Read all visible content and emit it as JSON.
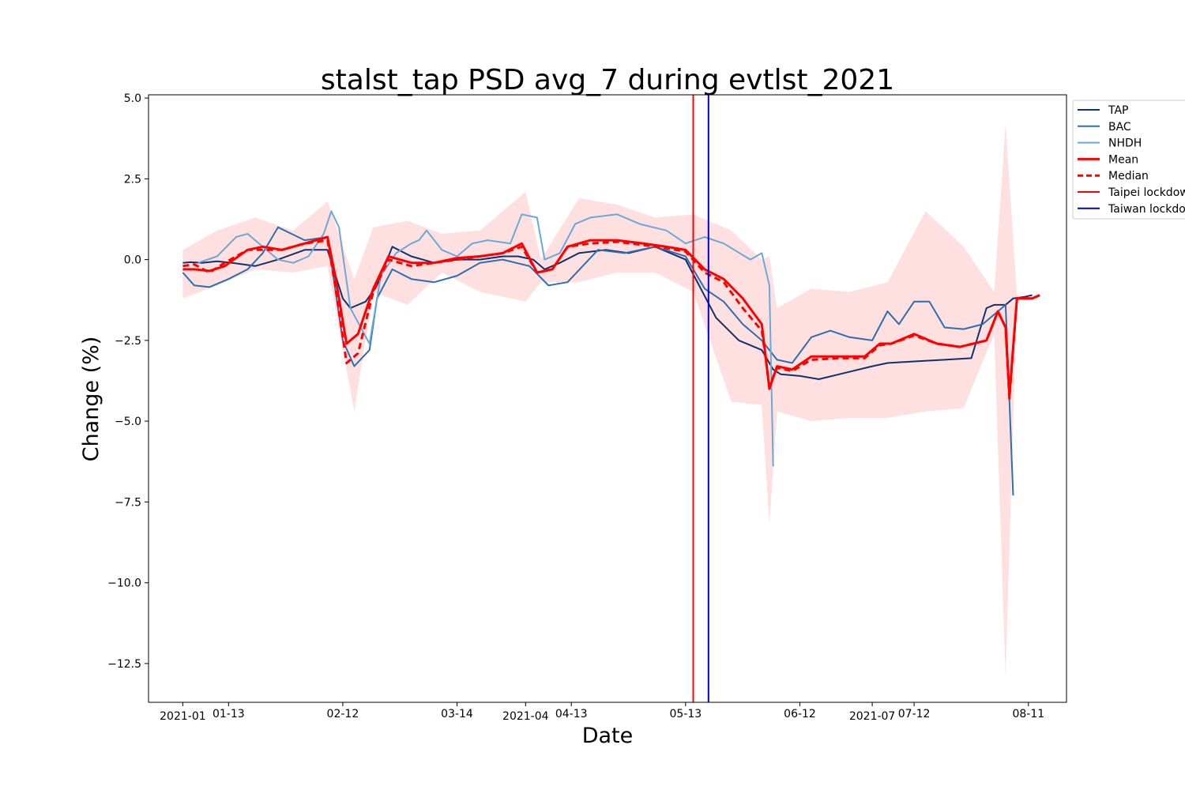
{
  "chart_data": {
    "type": "line",
    "title": "stalst_tap PSD avg_7 during evtlst_2021",
    "xlabel": "Date",
    "ylabel": "Change (%)",
    "ylim": [
      -13.7,
      5.1
    ],
    "xlim": [
      "2020-12-23",
      "2021-08-21"
    ],
    "y_ticks": [
      5.0,
      2.5,
      0.0,
      -2.5,
      -5.0,
      -7.5,
      -10.0,
      -12.5
    ],
    "y_tick_labels": [
      "5.0",
      "2.5",
      "0.0",
      "−2.5",
      "−5.0",
      "−7.5",
      "−10.0",
      "−12.5"
    ],
    "x_ticks": [
      {
        "date": "2021-01-01",
        "label": "2021-01",
        "row": 1
      },
      {
        "date": "2021-01-13",
        "label": "01-13",
        "row": 0
      },
      {
        "date": "2021-02-12",
        "label": "02-12",
        "row": 0
      },
      {
        "date": "2021-03-14",
        "label": "03-14",
        "row": 0
      },
      {
        "date": "2021-04-01",
        "label": "2021-04",
        "row": 1
      },
      {
        "date": "2021-04-13",
        "label": "04-13",
        "row": 0
      },
      {
        "date": "2021-05-13",
        "label": "05-13",
        "row": 0
      },
      {
        "date": "2021-06-12",
        "label": "06-12",
        "row": 0
      },
      {
        "date": "2021-07-01",
        "label": "2021-07",
        "row": 1
      },
      {
        "date": "2021-07-12",
        "label": "07-12",
        "row": 0
      },
      {
        "date": "2021-08-11",
        "label": "08-11",
        "row": 0
      }
    ],
    "legend_position": "upper right, outside plot",
    "grid": false,
    "vlines": [
      {
        "name": "Taipei lockdown",
        "date": "2021-05-15",
        "color": "#ff0000"
      },
      {
        "name": "Taiwan lockdown",
        "date": "2021-05-19",
        "color": "#0000cc"
      }
    ],
    "band": {
      "color": "#ffd6d6",
      "x": [
        "2021-01-01",
        "2021-01-10",
        "2021-01-20",
        "2021-01-30",
        "2021-02-08",
        "2021-02-15",
        "2021-02-20",
        "2021-03-01",
        "2021-03-10",
        "2021-03-20",
        "2021-04-01",
        "2021-04-05",
        "2021-04-15",
        "2021-04-25",
        "2021-05-05",
        "2021-05-15",
        "2021-05-25",
        "2021-06-02",
        "2021-06-04",
        "2021-06-06",
        "2021-06-15",
        "2021-06-25",
        "2021-07-05",
        "2021-07-15",
        "2021-07-25",
        "2021-08-02",
        "2021-08-05",
        "2021-08-08",
        "2021-08-10",
        "2021-08-14"
      ],
      "upper": [
        0.3,
        0.9,
        1.3,
        0.9,
        1.8,
        -0.6,
        1.0,
        1.2,
        0.8,
        0.9,
        2.1,
        0.0,
        1.9,
        1.7,
        1.3,
        1.4,
        0.9,
        0.0,
        0.1,
        -1.5,
        -0.9,
        -1.0,
        -0.7,
        1.5,
        0.4,
        -1.0,
        4.2,
        -1.1,
        -1.2,
        -1.1
      ],
      "lower": [
        -1.2,
        -0.8,
        -0.3,
        -0.4,
        -0.2,
        -4.7,
        -1.0,
        -1.4,
        -0.4,
        -1.0,
        -1.3,
        -0.7,
        -0.7,
        -0.4,
        -0.4,
        -1.0,
        -4.4,
        -4.5,
        -8.2,
        -4.7,
        -5.0,
        -4.9,
        -4.9,
        -4.7,
        -4.6,
        -2.3,
        -12.9,
        -1.1,
        -1.2,
        -1.1
      ]
    },
    "series": [
      {
        "name": "TAP",
        "color": "#10306e",
        "width": 2,
        "dash": "",
        "x": [
          "2021-01-01",
          "2021-01-03",
          "2021-01-06",
          "2021-01-10",
          "2021-01-14",
          "2021-01-20",
          "2021-01-26",
          "2021-02-02",
          "2021-02-08",
          "2021-02-12",
          "2021-02-14",
          "2021-02-18",
          "2021-02-21",
          "2021-02-25",
          "2021-03-02",
          "2021-03-08",
          "2021-03-14",
          "2021-03-20",
          "2021-03-26",
          "2021-03-30",
          "2021-04-03",
          "2021-04-06",
          "2021-04-10",
          "2021-04-15",
          "2021-04-22",
          "2021-04-28",
          "2021-05-05",
          "2021-05-13",
          "2021-05-17",
          "2021-05-21",
          "2021-05-27",
          "2021-06-02",
          "2021-06-05",
          "2021-06-07",
          "2021-06-12",
          "2021-06-17",
          "2021-06-24",
          "2021-07-01",
          "2021-07-05",
          "2021-07-12",
          "2021-07-20",
          "2021-07-27",
          "2021-07-31",
          "2021-08-02",
          "2021-08-05",
          "2021-08-07",
          "2021-08-10",
          "2021-08-12"
        ],
        "values": [
          -0.1,
          -0.08,
          -0.1,
          -0.05,
          -0.1,
          -0.2,
          0.0,
          0.3,
          0.3,
          -1.2,
          -1.5,
          -1.3,
          -0.8,
          0.4,
          0.1,
          -0.1,
          0.0,
          0.0,
          0.1,
          0.1,
          0.0,
          -0.3,
          -0.1,
          0.2,
          0.3,
          0.2,
          0.4,
          0.0,
          -0.9,
          -1.8,
          -2.5,
          -2.8,
          -3.4,
          -3.55,
          -3.6,
          -3.7,
          -3.5,
          -3.3,
          -3.2,
          -3.15,
          -3.1,
          -3.05,
          -1.5,
          -1.4,
          -1.4,
          -1.2,
          -1.15,
          -1.1
        ]
      },
      {
        "name": "BAC",
        "color": "#2e6db0",
        "width": 2,
        "dash": "",
        "x": [
          "2021-01-01",
          "2021-01-04",
          "2021-01-08",
          "2021-01-13",
          "2021-01-18",
          "2021-01-22",
          "2021-01-26",
          "2021-02-02",
          "2021-02-08",
          "2021-02-12",
          "2021-02-15",
          "2021-02-19",
          "2021-02-21",
          "2021-02-25",
          "2021-03-02",
          "2021-03-08",
          "2021-03-14",
          "2021-03-20",
          "2021-03-26",
          "2021-04-02",
          "2021-04-07",
          "2021-04-12",
          "2021-04-20",
          "2021-04-27",
          "2021-05-05",
          "2021-05-13",
          "2021-05-18",
          "2021-05-23",
          "2021-05-28",
          "2021-06-02",
          "2021-06-04",
          "2021-06-06",
          "2021-06-10",
          "2021-06-15",
          "2021-06-20",
          "2021-06-25",
          "2021-07-01",
          "2021-07-05",
          "2021-07-08",
          "2021-07-12",
          "2021-07-16",
          "2021-07-20",
          "2021-07-25",
          "2021-07-30",
          "2021-08-05",
          "2021-08-07"
        ],
        "values": [
          -0.4,
          -0.8,
          -0.85,
          -0.6,
          -0.3,
          0.2,
          1.0,
          0.6,
          0.7,
          -2.5,
          -3.3,
          -2.8,
          -1.2,
          -0.3,
          -0.6,
          -0.7,
          -0.5,
          -0.1,
          0.0,
          -0.2,
          -0.8,
          -0.7,
          0.3,
          0.2,
          0.4,
          0.1,
          -0.9,
          -1.3,
          -2.0,
          -2.5,
          -2.8,
          -3.1,
          -3.2,
          -2.4,
          -2.2,
          -2.4,
          -2.5,
          -1.6,
          -2.0,
          -1.3,
          -1.3,
          -2.1,
          -2.15,
          -2.0,
          -1.4,
          -7.3
        ]
      },
      {
        "name": "NHDH",
        "color": "#6ba8d8",
        "width": 2,
        "dash": "",
        "x": [
          "2021-01-05",
          "2021-01-10",
          "2021-01-15",
          "2021-01-18",
          "2021-01-20",
          "2021-01-22",
          "2021-01-26",
          "2021-01-30",
          "2021-02-03",
          "2021-02-07",
          "2021-02-09",
          "2021-02-11",
          "2021-02-14",
          "2021-02-19",
          "2021-02-22",
          "2021-02-26",
          "2021-03-02",
          "2021-03-04",
          "2021-03-06",
          "2021-03-10",
          "2021-03-14",
          "2021-03-18",
          "2021-03-22",
          "2021-03-28",
          "2021-03-31",
          "2021-04-04",
          "2021-04-06",
          "2021-04-10",
          "2021-04-14",
          "2021-04-18",
          "2021-04-25",
          "2021-05-01",
          "2021-05-08",
          "2021-05-13",
          "2021-05-18",
          "2021-05-23",
          "2021-05-30",
          "2021-06-02",
          "2021-06-04",
          "2021-06-05"
        ],
        "values": [
          -0.1,
          0.1,
          0.7,
          0.8,
          0.6,
          0.4,
          0.0,
          -0.1,
          0.1,
          0.8,
          1.5,
          1.0,
          -1.5,
          -2.6,
          -0.5,
          0.2,
          0.5,
          0.6,
          0.9,
          0.3,
          0.1,
          0.5,
          0.6,
          0.5,
          1.4,
          1.3,
          0.0,
          0.2,
          1.1,
          1.3,
          1.4,
          1.1,
          0.9,
          0.5,
          0.7,
          0.5,
          0.0,
          0.2,
          -0.8,
          -6.4
        ]
      },
      {
        "name": "Mean",
        "color": "#ff0000",
        "width": 3,
        "dash": "",
        "x": [
          "2021-01-01",
          "2021-01-04",
          "2021-01-08",
          "2021-01-12",
          "2021-01-18",
          "2021-01-22",
          "2021-01-27",
          "2021-02-02",
          "2021-02-08",
          "2021-02-10",
          "2021-02-13",
          "2021-02-16",
          "2021-02-20",
          "2021-02-24",
          "2021-03-02",
          "2021-03-08",
          "2021-03-14",
          "2021-03-20",
          "2021-03-26",
          "2021-03-31",
          "2021-04-04",
          "2021-04-08",
          "2021-04-12",
          "2021-04-18",
          "2021-04-25",
          "2021-05-02",
          "2021-05-08",
          "2021-05-13",
          "2021-05-18",
          "2021-05-23",
          "2021-05-28",
          "2021-06-02",
          "2021-06-04",
          "2021-06-06",
          "2021-06-10",
          "2021-06-15",
          "2021-06-22",
          "2021-06-29",
          "2021-07-03",
          "2021-07-06",
          "2021-07-12",
          "2021-07-18",
          "2021-07-24",
          "2021-07-31",
          "2021-08-03",
          "2021-08-05",
          "2021-08-06",
          "2021-08-08",
          "2021-08-12",
          "2021-08-14"
        ],
        "values": [
          -0.3,
          -0.3,
          -0.35,
          -0.2,
          0.3,
          0.4,
          0.3,
          0.5,
          0.7,
          -0.5,
          -2.6,
          -2.3,
          -0.9,
          0.1,
          -0.1,
          -0.1,
          0.05,
          0.1,
          0.2,
          0.5,
          -0.4,
          -0.3,
          0.4,
          0.6,
          0.6,
          0.5,
          0.4,
          0.3,
          -0.3,
          -0.6,
          -1.2,
          -2.0,
          -4.0,
          -3.3,
          -3.4,
          -3.0,
          -3.0,
          -3.0,
          -2.6,
          -2.6,
          -2.3,
          -2.6,
          -2.7,
          -2.5,
          -1.6,
          -2.1,
          -4.2,
          -1.2,
          -1.2,
          -1.1
        ]
      },
      {
        "name": "Median",
        "color": "#ff0000",
        "width": 3,
        "dash": "8,5",
        "x": [
          "2021-01-01",
          "2021-01-04",
          "2021-01-08",
          "2021-01-12",
          "2021-01-18",
          "2021-01-22",
          "2021-01-27",
          "2021-02-02",
          "2021-02-08",
          "2021-02-10",
          "2021-02-13",
          "2021-02-16",
          "2021-02-20",
          "2021-02-24",
          "2021-03-02",
          "2021-03-08",
          "2021-03-14",
          "2021-03-20",
          "2021-03-26",
          "2021-03-31",
          "2021-04-04",
          "2021-04-08",
          "2021-04-12",
          "2021-04-18",
          "2021-04-25",
          "2021-05-02",
          "2021-05-08",
          "2021-05-13",
          "2021-05-18",
          "2021-05-23",
          "2021-05-28",
          "2021-06-02",
          "2021-06-04",
          "2021-06-06",
          "2021-06-10",
          "2021-06-15",
          "2021-06-22",
          "2021-06-29",
          "2021-07-03",
          "2021-07-06",
          "2021-07-12",
          "2021-07-18",
          "2021-07-24",
          "2021-07-31",
          "2021-08-03",
          "2021-08-05",
          "2021-08-06",
          "2021-08-08",
          "2021-08-12",
          "2021-08-14"
        ],
        "values": [
          -0.2,
          -0.15,
          -0.4,
          -0.1,
          0.3,
          0.3,
          0.3,
          0.5,
          0.6,
          -0.8,
          -3.2,
          -2.9,
          -1.0,
          0.0,
          -0.2,
          -0.1,
          0.0,
          0.1,
          0.2,
          0.4,
          -0.4,
          -0.3,
          0.4,
          0.5,
          0.55,
          0.45,
          0.35,
          0.25,
          -0.4,
          -0.7,
          -1.5,
          -2.2,
          -3.9,
          -3.35,
          -3.45,
          -3.1,
          -3.05,
          -3.05,
          -2.65,
          -2.6,
          -2.35,
          -2.6,
          -2.7,
          -2.5,
          -1.6,
          -2.1,
          -4.3,
          -1.2,
          -1.2,
          -1.1
        ]
      }
    ]
  }
}
